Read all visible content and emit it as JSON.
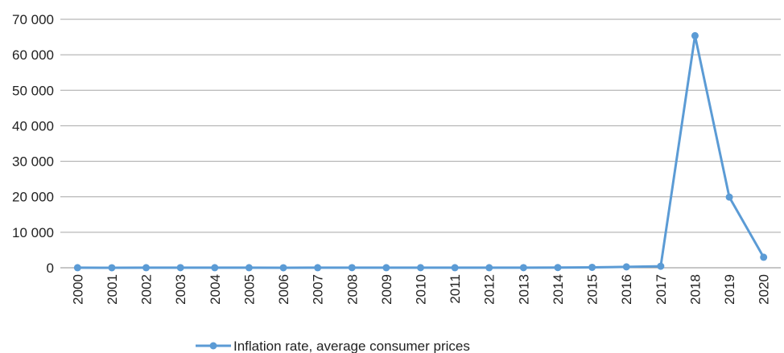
{
  "chart_data": {
    "type": "line",
    "title": "",
    "xlabel": "",
    "ylabel": "",
    "x": [
      "2000",
      "2001",
      "2002",
      "2003",
      "2004",
      "2005",
      "2006",
      "2007",
      "2008",
      "2009",
      "2010",
      "2011",
      "2012",
      "2013",
      "2014",
      "2015",
      "2016",
      "2017",
      "2018",
      "2019",
      "2020"
    ],
    "y_ticks": [
      "0",
      "10 000",
      "20 000",
      "30 000",
      "40 000",
      "50 000",
      "60 000",
      "70 000"
    ],
    "ylim": [
      0,
      70000
    ],
    "grid": true,
    "legend_position": "bottom",
    "series": [
      {
        "name": "Inflation rate, average consumer prices",
        "color": "#5b9bd5",
        "values": [
          16,
          13,
          22,
          31,
          22,
          16,
          14,
          19,
          30,
          27,
          28,
          26,
          21,
          41,
          62,
          122,
          255,
          438,
          65374,
          19906,
          2960
        ]
      }
    ]
  }
}
